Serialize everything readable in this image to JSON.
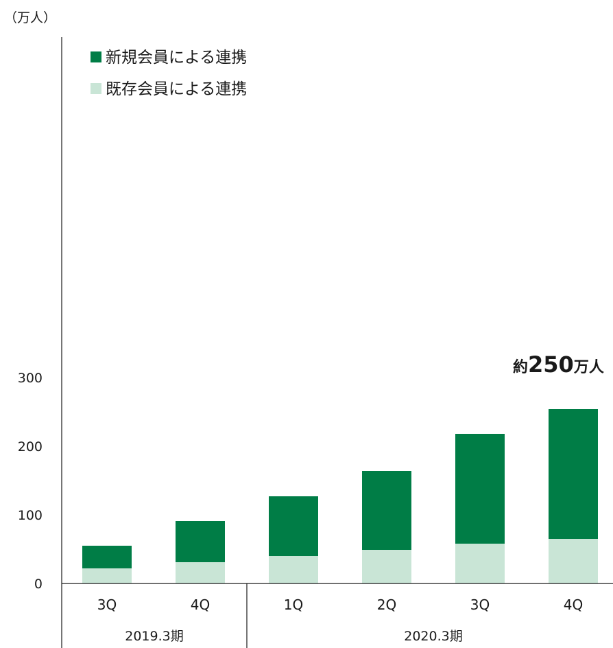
{
  "chart_data": {
    "type": "bar",
    "stacked": true,
    "unit_label": "（万人）",
    "categories": [
      "3Q",
      "4Q",
      "1Q",
      "2Q",
      "3Q",
      "4Q"
    ],
    "period_groups": [
      {
        "label": "2019.3期",
        "categories": [
          "3Q",
          "4Q"
        ]
      },
      {
        "label": "2020.3期",
        "categories": [
          "1Q",
          "2Q",
          "3Q",
          "4Q"
        ]
      }
    ],
    "series": [
      {
        "name": "既存会員による連携",
        "color": "#c9e5d6",
        "values": [
          22,
          31,
          40,
          49,
          58,
          65
        ]
      },
      {
        "name": "新規会員による連携",
        "color": "#007d46",
        "values": [
          33,
          60,
          87,
          115,
          160,
          189
        ]
      }
    ],
    "legend_order": [
      "新規会員による連携",
      "既存会員による連携"
    ],
    "legend_position": "top-left",
    "yticks": [
      0,
      100,
      200,
      300
    ],
    "ylim": [
      0,
      300
    ],
    "grid": false,
    "annotation": {
      "prefix": "約",
      "value": "250",
      "suffix": "万人"
    }
  }
}
